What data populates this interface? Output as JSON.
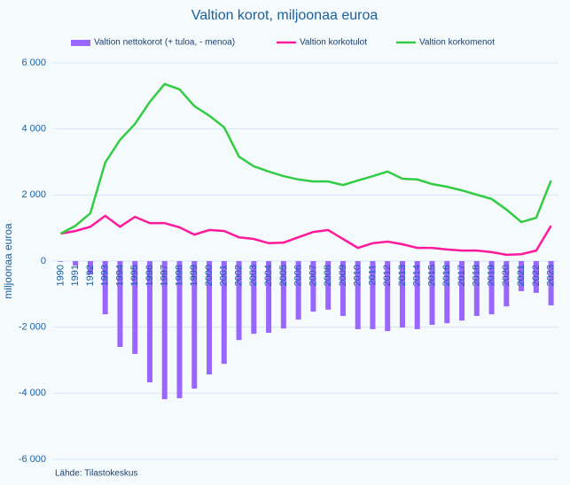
{
  "chart_data": {
    "type": "bar-line",
    "title": "Valtion korot, miljoonaa euroa",
    "y_label": "miljoonaa euroa",
    "source": "Lähde: Tilastokeskus",
    "categories": [
      "1990",
      "1991",
      "1992",
      "1993",
      "1994",
      "1995",
      "1996",
      "1997",
      "1998",
      "1999",
      "2000",
      "2001",
      "2002",
      "2003",
      "2004",
      "2005",
      "2006",
      "2007",
      "2008",
      "2009",
      "2010",
      "2011",
      "2012",
      "2013",
      "2014",
      "2015",
      "2016",
      "2017",
      "2018",
      "2019",
      "2020",
      "2021",
      "2022",
      "2023"
    ],
    "series": [
      {
        "name": "Valtion nettokorot (+ tuloa, - menoa)",
        "kind": "bar",
        "color": "#9966ff",
        "values": [
          -20,
          -140,
          -400,
          -1610,
          -2600,
          -2810,
          -3670,
          -4180,
          -4150,
          -3860,
          -3430,
          -3110,
          -2390,
          -2200,
          -2170,
          -2040,
          -1770,
          -1530,
          -1470,
          -1660,
          -2060,
          -2060,
          -2120,
          -2010,
          -2060,
          -1930,
          -1880,
          -1800,
          -1660,
          -1610,
          -1370,
          -910,
          -960,
          -1340
        ]
      },
      {
        "name": "Valtion korkotulot",
        "kind": "line",
        "color": "#ff1a9c",
        "values": [
          830,
          910,
          1040,
          1370,
          1040,
          1340,
          1150,
          1150,
          1020,
          800,
          940,
          910,
          720,
          670,
          540,
          560,
          720,
          880,
          940,
          670,
          400,
          540,
          590,
          510,
          400,
          400,
          350,
          320,
          320,
          270,
          190,
          210,
          320,
          1070
        ]
      },
      {
        "name": "Valtion korkomenot",
        "kind": "line",
        "color": "#33cc44",
        "values": [
          830,
          1070,
          1450,
          2980,
          3670,
          4150,
          4820,
          5360,
          5200,
          4690,
          4400,
          4050,
          3160,
          2870,
          2710,
          2570,
          2470,
          2410,
          2410,
          2300,
          2440,
          2570,
          2710,
          2490,
          2470,
          2330,
          2250,
          2140,
          2010,
          1880,
          1560,
          1180,
          1310,
          2440
        ]
      }
    ],
    "ylim": [
      -6000,
      6000
    ],
    "yticks": [
      {
        "value": -6000,
        "label": "-6 000"
      },
      {
        "value": -4000,
        "label": "-4 000"
      },
      {
        "value": -2000,
        "label": "-2 000"
      },
      0,
      {
        "value": 2000,
        "label": "2 000"
      },
      {
        "value": 4000,
        "label": "4 000"
      },
      {
        "value": 6000,
        "label": "6 000"
      }
    ],
    "grid": true
  }
}
